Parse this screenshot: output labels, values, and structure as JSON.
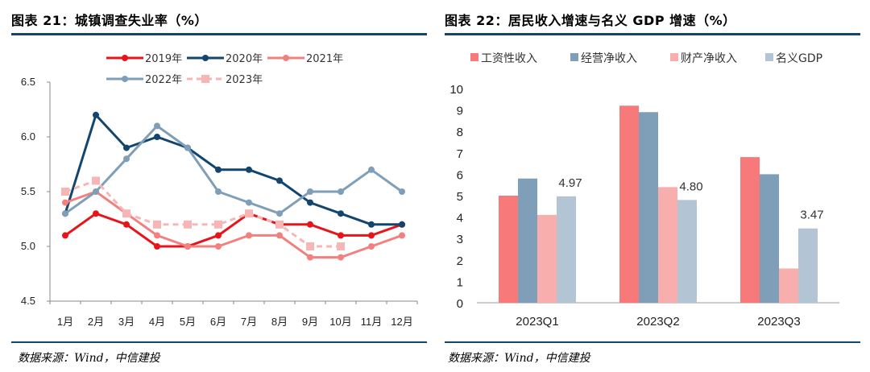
{
  "left": {
    "title": "图表 21：城镇调查失业率（%）",
    "source": "数据来源：Wind，中信建投"
  },
  "right": {
    "title": "图表 22：居民收入增速与名义 GDP 增速（%）",
    "source": "数据来源：Wind，中信建投"
  },
  "chart_data": [
    {
      "type": "line",
      "title": "城镇调查失业率（%）",
      "categories": [
        "1月",
        "2月",
        "3月",
        "4月",
        "5月",
        "6月",
        "7月",
        "8月",
        "9月",
        "10月",
        "11月",
        "12月"
      ],
      "ylim": [
        4.5,
        6.5
      ],
      "yticks": [
        "4.5",
        "5.0",
        "5.5",
        "6.0",
        "6.5"
      ],
      "legend_position": "top",
      "series": [
        {
          "name": "2019年",
          "color": "#e8141a",
          "dash": false,
          "marker": "circle",
          "values": [
            5.1,
            5.3,
            5.2,
            5.0,
            5.0,
            5.1,
            5.3,
            5.2,
            5.2,
            5.1,
            5.1,
            5.2
          ]
        },
        {
          "name": "2020年",
          "color": "#13466e",
          "dash": false,
          "marker": "circle",
          "values": [
            5.3,
            6.2,
            5.9,
            6.0,
            5.9,
            5.7,
            5.7,
            5.6,
            5.4,
            5.3,
            5.2,
            5.2
          ]
        },
        {
          "name": "2021年",
          "color": "#f2807e",
          "dash": false,
          "marker": "circle",
          "values": [
            5.4,
            5.5,
            5.3,
            5.1,
            5.0,
            5.0,
            5.1,
            5.1,
            4.9,
            4.9,
            5.0,
            5.1
          ]
        },
        {
          "name": "2022年",
          "color": "#7f9fb8",
          "dash": false,
          "marker": "circle",
          "values": [
            5.3,
            5.5,
            5.8,
            6.1,
            5.9,
            5.5,
            5.4,
            5.3,
            5.5,
            5.5,
            5.7,
            5.5
          ]
        },
        {
          "name": "2023年",
          "color": "#f7b6b6",
          "dash": true,
          "marker": "square",
          "values": [
            5.5,
            5.6,
            5.3,
            5.2,
            5.2,
            5.2,
            5.3,
            5.2,
            5.0,
            5.0,
            null,
            null
          ]
        }
      ]
    },
    {
      "type": "bar",
      "title": "居民收入增速与名义 GDP 增速（%）",
      "categories": [
        "2023Q1",
        "2023Q2",
        "2023Q3"
      ],
      "ylim": [
        0,
        10
      ],
      "yticks": [
        "0",
        "1",
        "2",
        "3",
        "4",
        "5",
        "6",
        "7",
        "8",
        "9",
        "10"
      ],
      "legend_position": "top",
      "series": [
        {
          "name": "工资性收入",
          "color": "#f7797a",
          "values": [
            5.0,
            9.2,
            6.8
          ]
        },
        {
          "name": "经营净收入",
          "color": "#7f9fb8",
          "values": [
            5.8,
            8.9,
            6.0
          ]
        },
        {
          "name": "财产净收入",
          "color": "#f9aeae",
          "values": [
            4.1,
            5.4,
            1.6
          ]
        },
        {
          "name": "名义GDP",
          "color": "#b3c5d4",
          "values": [
            4.97,
            4.8,
            3.47
          ]
        }
      ],
      "data_labels": [
        "4.97",
        "4.80",
        "3.47"
      ]
    }
  ]
}
